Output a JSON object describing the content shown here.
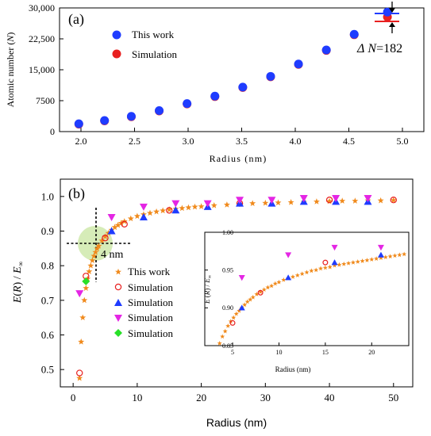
{
  "chart_data": [
    {
      "type": "scatter",
      "panel_label": "(a)",
      "xlabel": "Radius (nm)",
      "ylabel_main": "Atomic number (",
      "ylabel_var": "N",
      "ylabel_end": ")",
      "xlim": [
        1.8,
        5.2
      ],
      "ylim": [
        0,
        30000
      ],
      "xticks": [
        2.0,
        2.5,
        3.0,
        3.5,
        4.0,
        4.5,
        5.0
      ],
      "xtick_labels": [
        "2.0",
        "2.5",
        "3.0",
        "3.5",
        "4.0",
        "4.5",
        "5.0"
      ],
      "yticks": [
        0,
        7500,
        15000,
        22500,
        30000
      ],
      "ytick_labels": [
        "0",
        "7500",
        "15,000",
        "22,500",
        "30,000"
      ],
      "legend_position": "upper-left",
      "annotation_prefix": "Δ",
      "annotation_var": "N",
      "annotation_value": "=182",
      "series": [
        {
          "name": "This work",
          "color": "#1f3cff",
          "x": [
            1.98,
            2.22,
            2.47,
            2.73,
            2.99,
            3.25,
            3.51,
            3.77,
            4.03,
            4.29,
            4.55,
            4.86
          ],
          "y": [
            1900,
            2700,
            3700,
            5100,
            6800,
            8600,
            10800,
            13400,
            16400,
            19800,
            23600,
            29000
          ]
        },
        {
          "name": "Simulation",
          "color": "#e82020",
          "x": [
            1.98,
            2.22,
            2.47,
            2.73,
            2.99,
            3.25,
            3.51,
            3.77,
            4.03,
            4.29,
            4.55,
            4.86
          ],
          "y": [
            1800,
            2600,
            3600,
            5000,
            6700,
            8500,
            10700,
            13300,
            16300,
            19700,
            23500,
            27800
          ]
        }
      ]
    },
    {
      "type": "scatter",
      "panel_label": "(b)",
      "xlabel": "Radius (nm)",
      "ylabel_a": "E",
      "ylabel_b": "(",
      "ylabel_c": "R",
      "ylabel_d": ") / ",
      "ylabel_e": "E",
      "ylabel_sub": "∞",
      "xlim": [
        -2,
        53
      ],
      "ylim": [
        0.45,
        1.05
      ],
      "xticks": [
        0,
        10,
        20,
        30,
        40,
        50
      ],
      "xtick_labels": [
        "0",
        "10",
        "20",
        "30",
        "40",
        "50"
      ],
      "yticks": [
        0.5,
        0.6,
        0.7,
        0.8,
        0.9,
        1.0
      ],
      "ytick_labels": [
        "0.5",
        "0.6",
        "0.7",
        "0.8",
        "0.9",
        "1.0"
      ],
      "annotation": "4 nm",
      "legend_position": "lower-left",
      "series": [
        {
          "name": "This work",
          "color": "#f08a1c",
          "marker": "star",
          "x": [
            1,
            1.25,
            1.5,
            1.75,
            2,
            2.25,
            2.5,
            2.75,
            3,
            3.25,
            3.5,
            3.75,
            4,
            4.5,
            5,
            5.5,
            6,
            6.5,
            7,
            7.5,
            8,
            9,
            10,
            11,
            12,
            13,
            14,
            15,
            16,
            17,
            18,
            19,
            20,
            22,
            24,
            26,
            28,
            30,
            32,
            34,
            36,
            38,
            40,
            42,
            44,
            46,
            48,
            50
          ],
          "y": [
            0.475,
            0.58,
            0.65,
            0.7,
            0.735,
            0.762,
            0.783,
            0.8,
            0.815,
            0.828,
            0.839,
            0.849,
            0.857,
            0.872,
            0.884,
            0.894,
            0.903,
            0.911,
            0.917,
            0.923,
            0.928,
            0.936,
            0.943,
            0.948,
            0.952,
            0.956,
            0.959,
            0.962,
            0.964,
            0.966,
            0.968,
            0.97,
            0.971,
            0.974,
            0.976,
            0.978,
            0.98,
            0.981,
            0.982,
            0.983,
            0.984,
            0.985,
            0.986,
            0.987,
            0.987,
            0.988,
            0.988,
            0.989
          ]
        },
        {
          "name": "Simulation",
          "color": "#e82020",
          "marker": "open-circle",
          "x": [
            1,
            2,
            5,
            8,
            15,
            26,
            40,
            50
          ],
          "y": [
            0.49,
            0.77,
            0.88,
            0.92,
            0.96,
            0.98,
            0.99,
            0.99
          ]
        },
        {
          "name": "Simulation",
          "color": "#1f3cff",
          "marker": "triangle-up",
          "x": [
            6,
            11,
            16,
            21,
            26,
            31,
            36,
            41,
            46
          ],
          "y": [
            0.9,
            0.94,
            0.96,
            0.97,
            0.98,
            0.98,
            0.985,
            0.985,
            0.985
          ]
        },
        {
          "name": "Simulation",
          "color": "#e426e4",
          "marker": "triangle-down",
          "x": [
            1,
            6,
            11,
            16,
            21,
            26,
            31,
            36,
            41,
            46
          ],
          "y": [
            0.72,
            0.94,
            0.97,
            0.98,
            0.98,
            0.99,
            0.99,
            0.995,
            0.995,
            0.995
          ]
        },
        {
          "name": "Simulation",
          "color": "#28e028",
          "marker": "diamond",
          "x": [
            2
          ],
          "y": [
            0.755
          ]
        }
      ],
      "inset": {
        "xlabel": "Radius (nm)",
        "ylabel_a": "E",
        "ylabel_b": " (",
        "ylabel_c": "R",
        "ylabel_d": ") / ",
        "ylabel_e": "E",
        "ylabel_sub": "∞",
        "xlim": [
          2,
          24
        ],
        "ylim": [
          0.85,
          1.0
        ],
        "xticks": [
          5,
          10,
          15,
          20
        ],
        "xtick_labels": [
          "5",
          "10",
          "15",
          "20"
        ],
        "yticks": [
          0.85,
          0.9,
          0.95,
          1.0
        ],
        "ytick_labels": [
          "0.85",
          "0.90",
          "0.95",
          "1.00"
        ],
        "series": [
          {
            "name": "This work",
            "color": "#f08a1c",
            "marker": "star",
            "x": [
              3.6,
              3.9,
              4.2,
              4.5,
              4.8,
              5.1,
              5.4,
              5.7,
              6.0,
              6.3,
              6.6,
              6.9,
              7.2,
              7.6,
              8.0,
              8.4,
              8.8,
              9.2,
              9.6,
              10.0,
              10.5,
              11.0,
              11.5,
              12.0,
              12.5,
              13.0,
              13.5,
              14.0,
              14.5,
              15.0,
              15.5,
              16.0,
              16.5,
              17.0,
              17.5,
              18.0,
              18.5,
              19.0,
              19.5,
              20.0,
              20.5,
              21.0,
              21.5,
              22.0,
              22.5,
              23.0,
              23.5
            ],
            "y": [
              0.853,
              0.862,
              0.869,
              0.876,
              0.882,
              0.887,
              0.892,
              0.896,
              0.9,
              0.904,
              0.908,
              0.911,
              0.914,
              0.918,
              0.921,
              0.924,
              0.927,
              0.929,
              0.932,
              0.934,
              0.937,
              0.939,
              0.941,
              0.943,
              0.945,
              0.947,
              0.949,
              0.95,
              0.952,
              0.953,
              0.954,
              0.956,
              0.957,
              0.958,
              0.959,
              0.96,
              0.961,
              0.962,
              0.963,
              0.964,
              0.965,
              0.966,
              0.967,
              0.968,
              0.969,
              0.97,
              0.971
            ]
          },
          {
            "name": "Simulation",
            "color": "#e82020",
            "marker": "open-circle",
            "x": [
              5,
              8,
              15
            ],
            "y": [
              0.88,
              0.92,
              0.96
            ]
          },
          {
            "name": "Simulation",
            "color": "#1f3cff",
            "marker": "triangle-up",
            "x": [
              6,
              11,
              16,
              21
            ],
            "y": [
              0.9,
              0.94,
              0.96,
              0.97
            ]
          },
          {
            "name": "Simulation",
            "color": "#e426e4",
            "marker": "triangle-down",
            "x": [
              6,
              11,
              16,
              21
            ],
            "y": [
              0.94,
              0.97,
              0.98,
              0.98
            ]
          }
        ]
      }
    }
  ]
}
